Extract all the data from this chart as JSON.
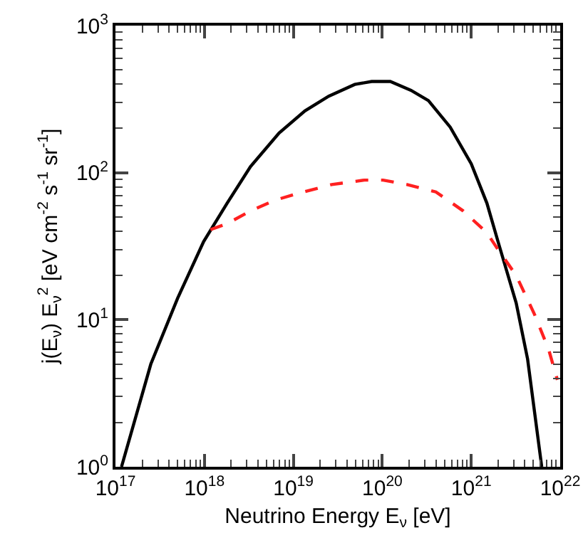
{
  "chart_data": {
    "type": "line",
    "xlabel": "Neutrino Energy E$_{ν}$ [eV]",
    "ylabel": "j(E$_{ν}$) E$_{ν}$$^{2}$ [eV cm$^{-2}$ s$^{-1}$ sr$^{-1}$]",
    "log": "xy",
    "grid": false,
    "marker": "none",
    "xlim": [
      1e+17,
      1e+22
    ],
    "ylim": [
      1,
      1000
    ],
    "xticks": [
      {
        "value": 1e+17,
        "label": "10$^{17}$"
      },
      {
        "value": 1e+18,
        "label": "10$^{18}$"
      },
      {
        "value": 1e+19,
        "label": "10$^{19}$"
      },
      {
        "value": 1e+20,
        "label": "10$^{20}$"
      },
      {
        "value": 1e+21,
        "label": "10$^{21}$"
      },
      {
        "value": 1e+22,
        "label": "10$^{22}$"
      }
    ],
    "yticks": [
      {
        "value": 1,
        "label": "10$^{0}$"
      },
      {
        "value": 10,
        "label": "10$^{1}$"
      },
      {
        "value": 100,
        "label": "10$^{2}$"
      },
      {
        "value": 1000,
        "label": "10$^{3}$"
      }
    ],
    "series": [
      {
        "color": "#000000",
        "line_style": "solid",
        "x": [
          1.17e+17,
          2.5e+17,
          5e+17,
          9.8e+17,
          1.8e+18,
          3.3e+18,
          6.9e+18,
          1.35e+19,
          2.5e+19,
          4.9e+19,
          7.6e+19,
          1.23e+20,
          2.1e+20,
          3.3e+20,
          5.8e+20,
          1e+21,
          1.5e+21,
          2e+21,
          3.2e+21,
          4.3e+21,
          6.2e+21
        ],
        "values": [
          1.0,
          5.0,
          14,
          34,
          62,
          110,
          186,
          263,
          331,
          398,
          417,
          417,
          363,
          309,
          204,
          115,
          62,
          34,
          13,
          5.4,
          1.0
        ]
      },
      {
        "color": "#ff2020",
        "line_style": "dashed",
        "x": [
          1.17e+18,
          1.8e+18,
          3.3e+18,
          6.2e+18,
          1.3e+19,
          2.7e+19,
          6.3e+19,
          1.02e+20,
          1.9e+20,
          4e+20,
          8.1e+20,
          1.5e+21,
          2e+21,
          3.2e+21,
          5.1e+21,
          7.4e+21,
          9.3e+21
        ],
        "values": [
          41,
          45,
          55,
          65,
          74,
          83,
          89,
          89,
          83,
          74,
          55,
          39,
          30,
          20,
          11,
          6.3,
          3.9
        ]
      }
    ]
  }
}
